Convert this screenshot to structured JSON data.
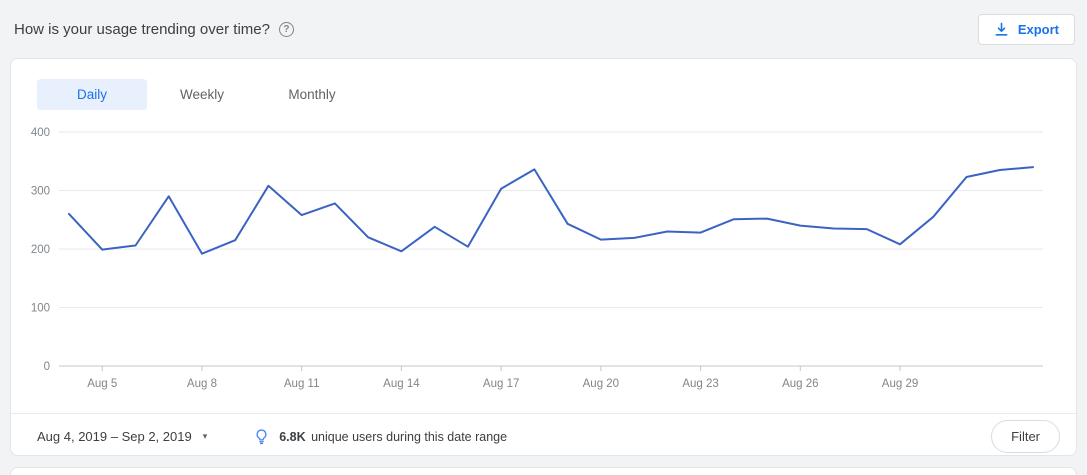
{
  "header": {
    "title": "How is your usage trending over time?",
    "export_label": "Export"
  },
  "icons": {
    "help_glyph": "?",
    "caret_glyph": "▾"
  },
  "tabs": [
    {
      "label": "Daily",
      "active": true
    },
    {
      "label": "Weekly",
      "active": false
    },
    {
      "label": "Monthly",
      "active": false
    }
  ],
  "chart_data": {
    "type": "line",
    "title": "Daily usage trend",
    "x": [
      "Aug 4",
      "Aug 5",
      "Aug 6",
      "Aug 7",
      "Aug 8",
      "Aug 9",
      "Aug 10",
      "Aug 11",
      "Aug 12",
      "Aug 13",
      "Aug 14",
      "Aug 15",
      "Aug 16",
      "Aug 17",
      "Aug 18",
      "Aug 19",
      "Aug 20",
      "Aug 21",
      "Aug 22",
      "Aug 23",
      "Aug 24",
      "Aug 25",
      "Aug 26",
      "Aug 27",
      "Aug 28",
      "Aug 29",
      "Aug 30",
      "Aug 31",
      "Sep 1",
      "Sep 2"
    ],
    "values": [
      260,
      199,
      206,
      290,
      192,
      215,
      308,
      258,
      278,
      220,
      196,
      238,
      204,
      303,
      336,
      243,
      216,
      219,
      230,
      228,
      251,
      252,
      240,
      235,
      234,
      208,
      255,
      323,
      335,
      340
    ],
    "x_tick_labels": [
      "Aug 5",
      "Aug 8",
      "Aug 11",
      "Aug 14",
      "Aug 17",
      "Aug 20",
      "Aug 23",
      "Aug 26",
      "Aug 29"
    ],
    "xlabel": "",
    "ylabel": "",
    "ylim": [
      0,
      400
    ],
    "y_ticks": [
      0,
      100,
      200,
      300,
      400
    ],
    "grid": true,
    "legend": false,
    "line_color": "#3b63c4",
    "grid_color": "#e8eaed",
    "axis_color": "#c4c7c5"
  },
  "footer": {
    "date_range": "Aug 4, 2019 – Sep 2, 2019",
    "insight_value": "6.8K",
    "insight_text": "unique users during this date range",
    "filter_label": "Filter"
  },
  "colors": {
    "accent_blue": "#1a73e8",
    "tab_active_bg": "#e8f0fe",
    "page_bg": "#f1f3f4",
    "card_bg": "#ffffff"
  }
}
